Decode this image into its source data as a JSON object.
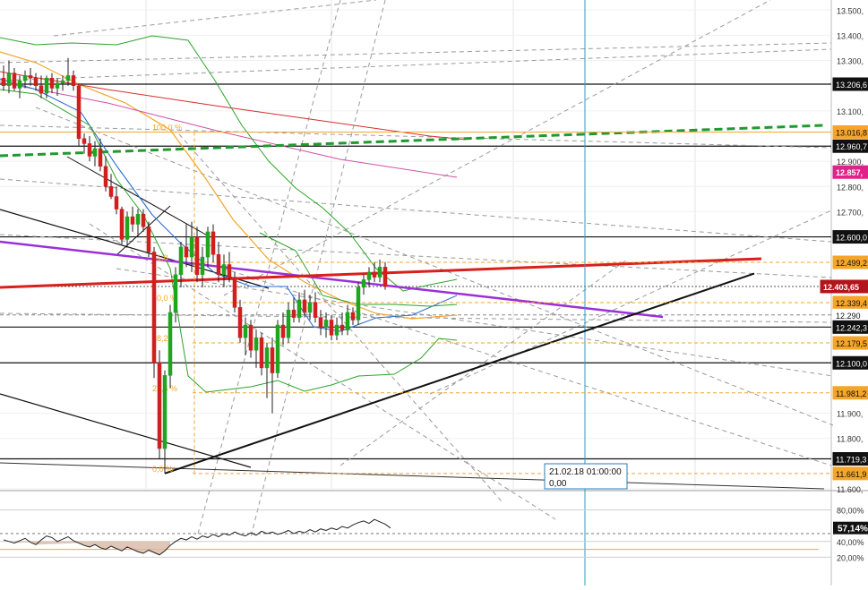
{
  "chart_data": [
    {
      "type": "candlestick",
      "title": "",
      "ylim": [
        11600,
        13540
      ],
      "ticks": [
        {
          "v": 13500,
          "label": "13.500,"
        },
        {
          "v": 13400,
          "label": "13.400,"
        },
        {
          "v": 13300,
          "label": "13.300,"
        },
        {
          "v": 13100,
          "label": "13.100,"
        },
        {
          "v": 12900,
          "label": "12.900,"
        },
        {
          "v": 12800,
          "label": "12.800,"
        },
        {
          "v": 12700,
          "label": "12.700,"
        },
        {
          "v": 11900,
          "label": "11.900,"
        },
        {
          "v": 11800,
          "label": "11.800,"
        },
        {
          "v": 11600,
          "label": "11.600,"
        }
      ],
      "price_labels": [
        {
          "v": 13206,
          "label": "13.206,6",
          "color": "#ffffff",
          "bg": "#111111"
        },
        {
          "v": 13016,
          "label": "13.016,8",
          "color": "#111111",
          "bg": "#f4a52a"
        },
        {
          "v": 12960,
          "label": "12.960,7",
          "color": "#ffffff",
          "bg": "#111111"
        },
        {
          "v": 12857,
          "label": "12.857,",
          "color": "#ffffff",
          "bg": "#e0238a"
        },
        {
          "v": 12600,
          "label": "12.600,0",
          "color": "#ffffff",
          "bg": "#111111"
        },
        {
          "v": 12499,
          "label": "12.499,2",
          "color": "#111111",
          "bg": "#f4a52a"
        },
        {
          "v": 12403,
          "label": "12.403,65",
          "color": "#ffffff",
          "bg": "#b3141b"
        },
        {
          "v": 12339,
          "label": "12.339,4",
          "color": "#111111",
          "bg": "#f4a52a"
        },
        {
          "v": 12290,
          "label": "12.290",
          "color": "#111111",
          "bg": "#ffffff"
        },
        {
          "v": 12242,
          "label": "12.242,3",
          "color": "#ffffff",
          "bg": "#111111"
        },
        {
          "v": 12179,
          "label": "12.179,5",
          "color": "#111111",
          "bg": "#f4a52a"
        },
        {
          "v": 12100,
          "label": "12.100,0",
          "color": "#ffffff",
          "bg": "#111111"
        },
        {
          "v": 11981,
          "label": "11.981,2",
          "color": "#111111",
          "bg": "#f4a52a"
        },
        {
          "v": 11719,
          "label": "11.719,3",
          "color": "#ffffff",
          "bg": "#111111"
        },
        {
          "v": 11661,
          "label": "11.661,9",
          "color": "#111111",
          "bg": "#f4a52a"
        }
      ],
      "fib_levels": [
        {
          "label": "100,0 %",
          "v": 13016
        },
        {
          "label": "61,8",
          "v": 12499
        },
        {
          "label": "50,0 %",
          "v": 12339
        },
        {
          "label": "38,2",
          "v": 12179
        },
        {
          "label": "23,6 %",
          "v": 11981
        },
        {
          "label": "0,0 %",
          "v": 11661
        }
      ],
      "candles": [
        {
          "o": 13230,
          "h": 13280,
          "l": 13180,
          "c": 13200
        },
        {
          "o": 13200,
          "h": 13300,
          "l": 13170,
          "c": 13250
        },
        {
          "o": 13250,
          "h": 13270,
          "l": 13180,
          "c": 13190
        },
        {
          "o": 13190,
          "h": 13240,
          "l": 13150,
          "c": 13220
        },
        {
          "o": 13220,
          "h": 13260,
          "l": 13190,
          "c": 13240
        },
        {
          "o": 13240,
          "h": 13270,
          "l": 13200,
          "c": 13230
        },
        {
          "o": 13230,
          "h": 13250,
          "l": 13180,
          "c": 13200
        },
        {
          "o": 13200,
          "h": 13240,
          "l": 13150,
          "c": 13170
        },
        {
          "o": 13170,
          "h": 13240,
          "l": 13150,
          "c": 13230
        },
        {
          "o": 13230,
          "h": 13250,
          "l": 13170,
          "c": 13190
        },
        {
          "o": 13190,
          "h": 13230,
          "l": 13160,
          "c": 13210
        },
        {
          "o": 13210,
          "h": 13240,
          "l": 13180,
          "c": 13220
        },
        {
          "o": 13220,
          "h": 13310,
          "l": 13200,
          "c": 13240
        },
        {
          "o": 13240,
          "h": 13260,
          "l": 13180,
          "c": 13200
        },
        {
          "o": 13200,
          "h": 13210,
          "l": 12960,
          "c": 12990
        },
        {
          "o": 12990,
          "h": 13010,
          "l": 12930,
          "c": 12970
        },
        {
          "o": 12970,
          "h": 13000,
          "l": 12900,
          "c": 12920
        },
        {
          "o": 12920,
          "h": 12980,
          "l": 12880,
          "c": 12950
        },
        {
          "o": 12950,
          "h": 12990,
          "l": 12860,
          "c": 12880
        },
        {
          "o": 12880,
          "h": 12920,
          "l": 12780,
          "c": 12800
        },
        {
          "o": 12800,
          "h": 12850,
          "l": 12750,
          "c": 12760
        },
        {
          "o": 12760,
          "h": 12800,
          "l": 12690,
          "c": 12710
        },
        {
          "o": 12710,
          "h": 12720,
          "l": 12570,
          "c": 12590
        },
        {
          "o": 12590,
          "h": 12700,
          "l": 12560,
          "c": 12680
        },
        {
          "o": 12680,
          "h": 12720,
          "l": 12620,
          "c": 12650
        },
        {
          "o": 12650,
          "h": 12710,
          "l": 12600,
          "c": 12690
        },
        {
          "o": 12690,
          "h": 12710,
          "l": 12620,
          "c": 12640
        },
        {
          "o": 12640,
          "h": 12660,
          "l": 12520,
          "c": 12540
        },
        {
          "o": 12540,
          "h": 12560,
          "l": 12040,
          "c": 12100
        },
        {
          "o": 12100,
          "h": 12150,
          "l": 11720,
          "c": 11760
        },
        {
          "o": 11760,
          "h": 12070,
          "l": 11661,
          "c": 12050
        },
        {
          "o": 12050,
          "h": 12330,
          "l": 12000,
          "c": 12300
        },
        {
          "o": 12300,
          "h": 12480,
          "l": 12260,
          "c": 12450
        },
        {
          "o": 12450,
          "h": 12580,
          "l": 12400,
          "c": 12560
        },
        {
          "o": 12560,
          "h": 12650,
          "l": 12480,
          "c": 12520
        },
        {
          "o": 12520,
          "h": 12660,
          "l": 12460,
          "c": 12600
        },
        {
          "o": 12600,
          "h": 12640,
          "l": 12420,
          "c": 12450
        },
        {
          "o": 12450,
          "h": 12560,
          "l": 12400,
          "c": 12520
        },
        {
          "o": 12520,
          "h": 12640,
          "l": 12480,
          "c": 12620
        },
        {
          "o": 12620,
          "h": 12650,
          "l": 12500,
          "c": 12530
        },
        {
          "o": 12530,
          "h": 12580,
          "l": 12420,
          "c": 12450
        },
        {
          "o": 12450,
          "h": 12530,
          "l": 12400,
          "c": 12490
        },
        {
          "o": 12490,
          "h": 12540,
          "l": 12420,
          "c": 12440
        },
        {
          "o": 12440,
          "h": 12460,
          "l": 12300,
          "c": 12320
        },
        {
          "o": 12320,
          "h": 12350,
          "l": 12180,
          "c": 12200
        },
        {
          "o": 12200,
          "h": 12280,
          "l": 12130,
          "c": 12250
        },
        {
          "o": 12250,
          "h": 12270,
          "l": 12120,
          "c": 12150
        },
        {
          "o": 12150,
          "h": 12230,
          "l": 12080,
          "c": 12200
        },
        {
          "o": 12200,
          "h": 12220,
          "l": 12050,
          "c": 12080
        },
        {
          "o": 12080,
          "h": 12180,
          "l": 11960,
          "c": 12160
        },
        {
          "o": 12160,
          "h": 12200,
          "l": 11900,
          "c": 12060
        },
        {
          "o": 12060,
          "h": 12270,
          "l": 12040,
          "c": 12250
        },
        {
          "o": 12250,
          "h": 12300,
          "l": 12170,
          "c": 12200
        },
        {
          "o": 12200,
          "h": 12340,
          "l": 12180,
          "c": 12310
        },
        {
          "o": 12310,
          "h": 12360,
          "l": 12260,
          "c": 12280
        },
        {
          "o": 12280,
          "h": 12380,
          "l": 12260,
          "c": 12350
        },
        {
          "o": 12350,
          "h": 12390,
          "l": 12280,
          "c": 12300
        },
        {
          "o": 12300,
          "h": 12370,
          "l": 12270,
          "c": 12340
        },
        {
          "o": 12340,
          "h": 12380,
          "l": 12260,
          "c": 12280
        },
        {
          "o": 12280,
          "h": 12310,
          "l": 12210,
          "c": 12240
        },
        {
          "o": 12240,
          "h": 12300,
          "l": 12200,
          "c": 12270
        },
        {
          "o": 12270,
          "h": 12290,
          "l": 12190,
          "c": 12210
        },
        {
          "o": 12210,
          "h": 12280,
          "l": 12190,
          "c": 12250
        },
        {
          "o": 12250,
          "h": 12300,
          "l": 12210,
          "c": 12230
        },
        {
          "o": 12230,
          "h": 12330,
          "l": 12210,
          "c": 12300
        },
        {
          "o": 12300,
          "h": 12320,
          "l": 12250,
          "c": 12270
        },
        {
          "o": 12270,
          "h": 12420,
          "l": 12250,
          "c": 12400
        },
        {
          "o": 12400,
          "h": 12450,
          "l": 12370,
          "c": 12430
        },
        {
          "o": 12430,
          "h": 12480,
          "l": 12400,
          "c": 12460
        },
        {
          "o": 12460,
          "h": 12500,
          "l": 12420,
          "c": 12440
        },
        {
          "o": 12440,
          "h": 12510,
          "l": 12420,
          "c": 12480
        },
        {
          "o": 12480,
          "h": 12500,
          "l": 12390,
          "c": 12403
        }
      ],
      "support_line": {
        "from": [
          30,
          11661
        ],
        "to": [
          68,
          12330
        ]
      },
      "crosshair": {
        "candle_index": 105,
        "date_label": "21.02.18 01:00:00",
        "value_label": "0,00"
      }
    },
    {
      "type": "line",
      "title": "",
      "ylim": [
        0,
        100
      ],
      "ticks": [
        {
          "v": 80,
          "label": "80,00%"
        },
        {
          "v": 40,
          "label": "40,00%"
        },
        {
          "v": 20,
          "label": "20,00%"
        }
      ],
      "current": {
        "v": 57.14,
        "label": "57,14%"
      },
      "values": [
        42,
        40,
        38,
        41,
        44,
        39,
        36,
        42,
        47,
        45,
        40,
        43,
        46,
        41,
        38,
        35,
        33,
        36,
        32,
        30,
        34,
        31,
        28,
        33,
        30,
        27,
        25,
        29,
        26,
        23,
        28,
        35,
        40,
        44,
        42,
        46,
        43,
        47,
        45,
        49,
        46,
        50,
        48,
        52,
        49,
        47,
        51,
        48,
        53,
        50,
        52,
        49,
        51,
        54,
        50,
        53,
        51,
        55,
        52,
        56,
        54,
        57,
        55,
        59,
        57,
        61,
        64,
        66,
        63,
        68,
        65,
        62,
        57
      ]
    }
  ]
}
